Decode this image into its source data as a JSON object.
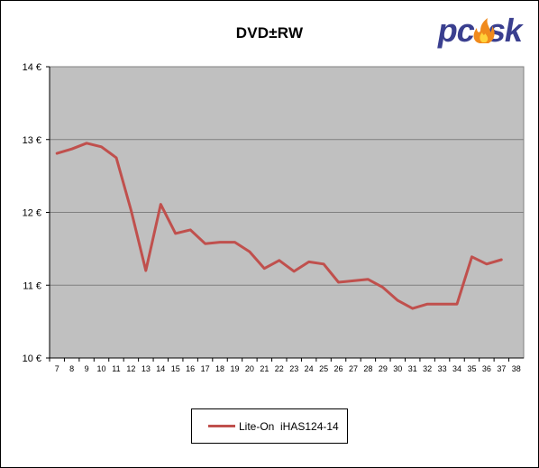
{
  "brand": {
    "logo_text": "pcesk"
  },
  "colors": {
    "plot_bg": "#c0c0c0",
    "series": "#c0504d",
    "grid": "#7f7f7f"
  },
  "chart_data": {
    "type": "line",
    "title": "DVD±RW",
    "xlabel": "",
    "ylabel": "",
    "x_ticks": [
      "7",
      "8",
      "9",
      "10",
      "11",
      "12",
      "13",
      "14",
      "15",
      "16",
      "17",
      "18",
      "19",
      "20",
      "21",
      "22",
      "23",
      "24",
      "25",
      "26",
      "27",
      "28",
      "29",
      "30",
      "31",
      "32",
      "33",
      "34",
      "35",
      "36",
      "37",
      "38"
    ],
    "y_ticks": [
      "14 €",
      "13 €",
      "12 €",
      "11 €",
      "10 €"
    ],
    "ylim": [
      10,
      14
    ],
    "grid": true,
    "legend_position": "bottom",
    "series": [
      {
        "name": "Lite-On  iHAS124-14",
        "x": [
          7,
          8,
          9,
          10,
          11,
          12,
          13,
          14,
          15,
          16,
          17,
          18,
          19,
          20,
          21,
          22,
          23,
          24,
          25,
          26,
          27,
          28,
          29,
          30,
          31,
          32,
          33,
          34,
          35,
          36,
          37
        ],
        "values": [
          12.81,
          12.87,
          12.95,
          12.9,
          12.75,
          12.03,
          11.2,
          12.11,
          11.71,
          11.76,
          11.57,
          11.59,
          11.59,
          11.46,
          11.23,
          11.34,
          11.19,
          11.32,
          11.29,
          11.04,
          11.06,
          11.08,
          10.97,
          10.79,
          10.68,
          10.74,
          10.74,
          10.74,
          11.39,
          11.29,
          11.35
        ]
      }
    ]
  }
}
